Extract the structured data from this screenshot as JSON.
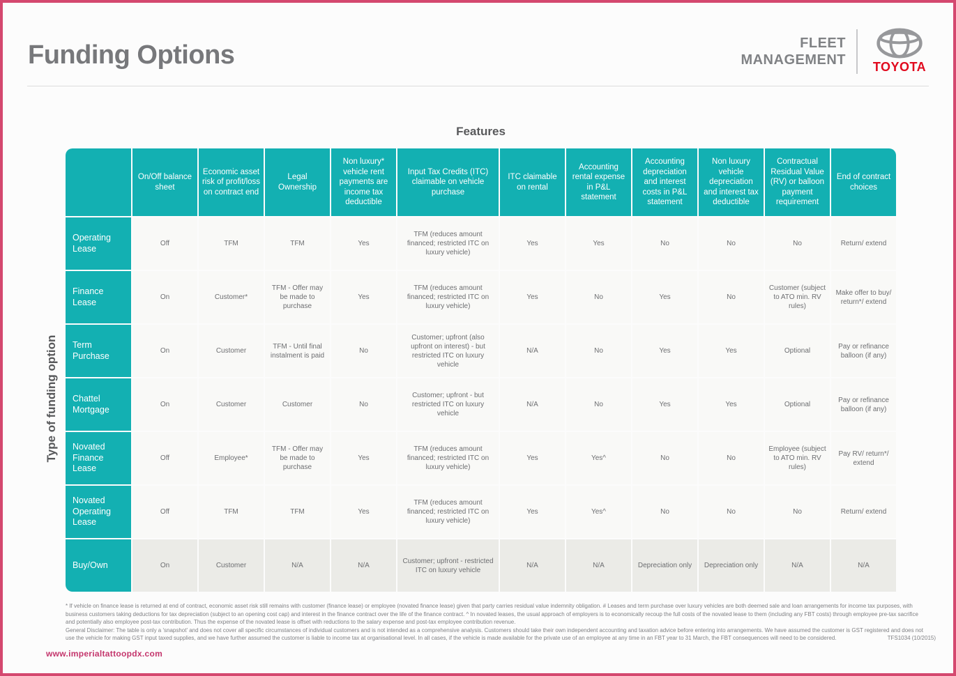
{
  "header": {
    "title": "Funding Options",
    "brand": {
      "line1": "FLEET",
      "line2": "MANAGEMENT",
      "toyota": "TOYOTA"
    }
  },
  "features_title": "Features",
  "side_label": "Type of funding option",
  "table": {
    "columns": [
      "On/Off balance sheet",
      "Economic asset risk of profit/loss on contract end",
      "Legal Ownership",
      "Non luxury* vehicle rent payments are income tax deductible",
      "Input Tax Credits (ITC) claimable on vehicle purchase",
      "ITC claimable on rental",
      "Accounting rental expense in P&L statement",
      "Accounting depreciation and interest costs in P&L statement",
      "Non luxury vehicle depreciation and interest tax deductible",
      "Contractual Residual Value (RV) or balloon payment requirement",
      "End of contract choices"
    ],
    "rows": [
      {
        "label": "Operating Lease",
        "highlight": false,
        "cells": [
          "Off",
          "TFM",
          "TFM",
          "Yes",
          "TFM (reduces amount financed; restricted ITC on luxury vehicle)",
          "Yes",
          "Yes",
          "No",
          "No",
          "No",
          "Return/ extend"
        ]
      },
      {
        "label": "Finance Lease",
        "highlight": false,
        "cells": [
          "On",
          "Customer*",
          "TFM - Offer may be made to purchase",
          "Yes",
          "TFM (reduces amount financed; restricted ITC on luxury vehicle)",
          "Yes",
          "No",
          "Yes",
          "No",
          "Customer (subject to ATO min. RV rules)",
          "Make offer to buy/ return*/ extend"
        ]
      },
      {
        "label": "Term Purchase",
        "highlight": false,
        "cells": [
          "On",
          "Customer",
          "TFM - Until final instalment is paid",
          "No",
          "Customer; upfront (also upfront on interest) - but restricted ITC on luxury vehicle",
          "N/A",
          "No",
          "Yes",
          "Yes",
          "Optional",
          "Pay or refinance balloon (if any)"
        ]
      },
      {
        "label": "Chattel Mortgage",
        "highlight": false,
        "cells": [
          "On",
          "Customer",
          "Customer",
          "No",
          "Customer; upfront - but restricted ITC on luxury vehicle",
          "N/A",
          "No",
          "Yes",
          "Yes",
          "Optional",
          "Pay or refinance balloon (if any)"
        ]
      },
      {
        "label": "Novated Finance Lease",
        "highlight": false,
        "cells": [
          "Off",
          "Employee*",
          "TFM - Offer may be made to purchase",
          "Yes",
          "TFM (reduces amount financed; restricted ITC on luxury vehicle)",
          "Yes",
          "Yes^",
          "No",
          "No",
          "Employee (subject to ATO min. RV rules)",
          "Pay RV/ return*/ extend"
        ]
      },
      {
        "label": "Novated Operating Lease",
        "highlight": false,
        "cells": [
          "Off",
          "TFM",
          "TFM",
          "Yes",
          "TFM (reduces amount financed; restricted ITC on luxury vehicle)",
          "Yes",
          "Yes^",
          "No",
          "No",
          "No",
          "Return/ extend"
        ]
      },
      {
        "label": "Buy/Own",
        "highlight": true,
        "cells": [
          "On",
          "Customer",
          "N/A",
          "N/A",
          "Customer; upfront - restricted ITC on luxury vehicle",
          "N/A",
          "N/A",
          "Depreciation only",
          "Depreciation only",
          "N/A",
          "N/A"
        ]
      }
    ]
  },
  "footer": {
    "lines": [
      "* If vehicle on finance lease is returned at end of contract, economic asset risk still remains with customer (finance lease) or employee (novated finance lease) given that party carries residual value indemnity obligation. # Leases and term purchase over luxury vehicles are both deemed sale and loan arrangements for income tax purposes, with",
      "business customers taking deductions for tax depreciation (subject to an opening cost cap) and interest in the finance contract over the life of the finance contract. ^ In novated leases, the usual approach of employers is to economically recoup the full costs of the novated lease to them (including any FBT costs) through employee pre-tax sacrifice",
      "and potentially also employee post-tax contribution. Thus the expense of the novated lease is offset with reductions to the salary expense and post-tax employee contribution revenue.",
      "General Disclaimer: The table is only a 'snapshot' and does not cover all specific circumstances of individual customers and is not intended as a comprehensive analysis. Customers should take their own independent accounting and taxation advice before entering into arrangements. We have assumed the customer is GST registered and does not",
      "use the vehicle for making GST input taxed supplies, and we have further assumed the customer is liable to income tax at organisational level. In all cases, if the vehicle is made available for the private use of an employee at any time in an FBT year to 31 March, the FBT consequences will need to be considered."
    ],
    "doc_code": "TFS1034 (10/2015)"
  },
  "watermark": "www.imperialtattoopdx.com",
  "colors": {
    "teal": "#13b0b2",
    "toyota_red": "#e10a1e",
    "page_border_pink": "#d4486f",
    "watermark_pink": "#c4356c",
    "text_gray": "#6d6e71"
  }
}
